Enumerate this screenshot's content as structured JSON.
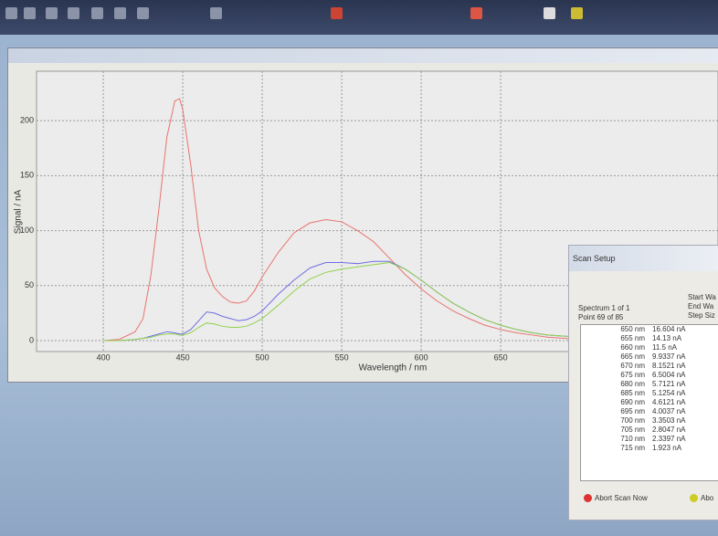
{
  "chart_data": {
    "type": "line",
    "xlabel": "Wavelength / nm",
    "ylabel": "Signal / nA",
    "xlim": [
      358,
      760
    ],
    "ylim": [
      -10,
      245
    ],
    "xticks": [
      400,
      450,
      500,
      550,
      600,
      650
    ],
    "yticks": [
      0,
      50,
      100,
      150,
      200
    ],
    "grid": true,
    "x": [
      400,
      410,
      420,
      425,
      430,
      435,
      440,
      445,
      448,
      450,
      455,
      460,
      465,
      470,
      475,
      480,
      485,
      490,
      495,
      500,
      510,
      520,
      530,
      540,
      550,
      560,
      570,
      580,
      590,
      600,
      610,
      620,
      630,
      640,
      650,
      660,
      670,
      680,
      690,
      700
    ],
    "series": [
      {
        "color": "#e8736e",
        "values": [
          0,
          1,
          8,
          20,
          60,
          120,
          185,
          218,
          220,
          210,
          160,
          100,
          65,
          48,
          40,
          35,
          34,
          36,
          45,
          58,
          80,
          98,
          107,
          110,
          108,
          100,
          90,
          75,
          60,
          47,
          36,
          27,
          20,
          14,
          10,
          7,
          5,
          3,
          2,
          1
        ]
      },
      {
        "color": "#6e6ee0",
        "values": [
          0,
          0,
          1,
          2,
          4,
          6,
          8,
          7,
          6,
          6,
          10,
          18,
          26,
          25,
          22,
          20,
          18,
          19,
          22,
          27,
          42,
          55,
          66,
          71,
          71,
          70,
          72,
          72,
          65,
          55,
          44,
          34,
          26,
          19,
          14,
          10,
          7,
          5,
          4,
          3
        ]
      },
      {
        "color": "#8fd24a",
        "values": [
          0,
          0,
          1,
          2,
          3,
          5,
          6,
          6,
          5,
          5,
          7,
          12,
          16,
          15,
          13,
          12,
          12,
          13,
          16,
          20,
          32,
          45,
          56,
          62,
          65,
          67,
          69,
          71,
          65,
          55,
          44,
          34,
          26,
          19,
          14,
          10,
          7,
          5,
          4,
          3
        ]
      }
    ]
  },
  "scan_setup": {
    "title": "Scan Setup",
    "spectrum": "Spectrum 1 of 1",
    "point": "Point 69 of 85",
    "fields": [
      "Start Wa",
      "End Wa",
      "Step Siz"
    ],
    "rows": [
      [
        "650 nm",
        "16.604 nA"
      ],
      [
        "655 nm",
        "14.13 nA"
      ],
      [
        "660 nm",
        "11.5 nA"
      ],
      [
        "665 nm",
        "9.9337 nA"
      ],
      [
        "670 nm",
        "8.1521 nA"
      ],
      [
        "675 nm",
        "6.5004 nA"
      ],
      [
        "680 nm",
        "5.7121 nA"
      ],
      [
        "685 nm",
        "5.1254 nA"
      ],
      [
        "690 nm",
        "4.6121 nA"
      ],
      [
        "695 nm",
        "4.0037 nA"
      ],
      [
        "700 nm",
        "3.3503 nA"
      ],
      [
        "705 nm",
        "2.8047 nA"
      ],
      [
        "710 nm",
        "2.3397 nA"
      ],
      [
        "715 nm",
        "1.923 nA"
      ]
    ],
    "abort": "Abort Scan Now",
    "abort2": "Abo"
  }
}
